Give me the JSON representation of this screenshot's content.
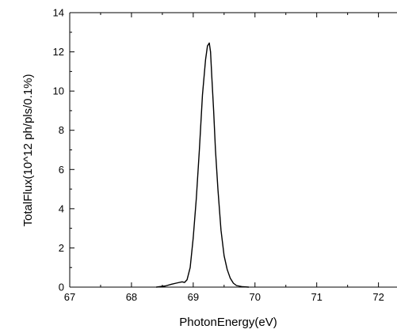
{
  "chart_data": {
    "type": "line",
    "xlabel": "PhotonEnergy(eV)",
    "ylabel": "TotalFlux(10^12 ph/pls/0.1%)",
    "xlim": [
      67,
      72.3
    ],
    "ylim": [
      0,
      14
    ],
    "x_ticks": [
      67,
      68,
      69,
      70,
      71,
      72
    ],
    "x_tick_labels": [
      "67",
      "68",
      "69",
      "70",
      "71",
      "72"
    ],
    "y_ticks": [
      0,
      2,
      4,
      6,
      8,
      10,
      12,
      14
    ],
    "y_tick_labels": [
      "0",
      "2",
      "4",
      "6",
      "8",
      "10",
      "12",
      "14"
    ],
    "grid": false,
    "series": [
      {
        "color": "#000000",
        "x": [
          68.4,
          68.55,
          68.65,
          68.75,
          68.82,
          68.86,
          68.9,
          68.95,
          69.0,
          69.05,
          69.1,
          69.15,
          69.2,
          69.23,
          69.26,
          69.28,
          69.3,
          69.33,
          69.36,
          69.4,
          69.45,
          69.5,
          69.55,
          69.6,
          69.65,
          69.7,
          69.8,
          69.9
        ],
        "y": [
          0.0,
          0.06,
          0.15,
          0.22,
          0.27,
          0.24,
          0.38,
          1.0,
          2.5,
          4.5,
          7.0,
          9.8,
          11.6,
          12.3,
          12.45,
          12.0,
          10.8,
          9.0,
          7.0,
          5.0,
          2.9,
          1.6,
          0.9,
          0.45,
          0.2,
          0.08,
          0.02,
          0.0
        ]
      }
    ]
  }
}
